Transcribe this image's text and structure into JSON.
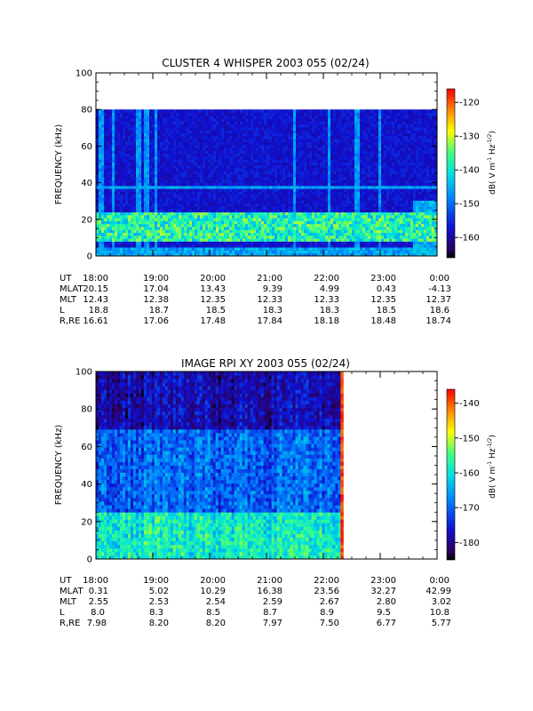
{
  "chart_data": [
    {
      "type": "heatmap",
      "title": "CLUSTER 4 WHISPER 2003 055 (02/24)",
      "ylabel": "FREQUENCY (kHz)",
      "ylim": [
        0,
        100
      ],
      "yticks": [
        "0",
        "20",
        "40",
        "60",
        "80",
        "100"
      ],
      "colorbar": {
        "label": "dB( V m",
        "label_sup1": "-1",
        "label_mid": " Hz",
        "label_sup2": "-1/2",
        "label_end": ")",
        "range": [
          -166,
          -116
        ],
        "ticks": [
          "-120",
          "-130",
          "-140",
          "-150",
          "-160"
        ],
        "tick_values": [
          -120,
          -130,
          -140,
          -150,
          -160
        ]
      },
      "time_range_h": [
        18,
        24
      ],
      "data_end_h": 24,
      "freq_cutoff_khz": 80,
      "features": {
        "background_db": -157,
        "band_khz": [
          8,
          24
        ],
        "band_db": -138,
        "line_khz": 38,
        "spikes_h": [
          18.1,
          18.3,
          18.75,
          18.9,
          19.05,
          21.5,
          22.1,
          22.6,
          23.0
        ]
      },
      "ephemeris": {
        "row_labels": [
          "UT",
          "MLAT",
          "MLT",
          "L",
          "R,RE"
        ],
        "columns": [
          [
            "18:00",
            "20.15",
            "12.43",
            "18.8",
            "16.61"
          ],
          [
            "19:00",
            "17.04",
            "12.38",
            "18.7",
            "17.06"
          ],
          [
            "20:00",
            "13.43",
            "12.35",
            "18.5",
            "17.48"
          ],
          [
            "21:00",
            "9.39",
            "12.33",
            "18.3",
            "17.84"
          ],
          [
            "22:00",
            "4.99",
            "12.33",
            "18.3",
            "18.18"
          ],
          [
            "23:00",
            "0.43",
            "12.35",
            "18.5",
            "18.48"
          ],
          [
            "0:00",
            "-4.13",
            "12.37",
            "18.6",
            "18.74"
          ]
        ]
      }
    },
    {
      "type": "heatmap",
      "title": "IMAGE RPI XY 2003 055 (02/24)",
      "ylabel": "FREQUENCY (kHz)",
      "ylim": [
        0,
        100
      ],
      "yticks": [
        "0",
        "20",
        "40",
        "60",
        "80",
        "100"
      ],
      "colorbar": {
        "label": "dB( V m",
        "label_sup1": "-1",
        "label_mid": " Hz",
        "label_sup2": "-1/2",
        "label_end": ")",
        "range": [
          -185,
          -136
        ],
        "ticks": [
          "-140",
          "-150",
          "-160",
          "-170",
          "-180"
        ],
        "tick_values": [
          -140,
          -150,
          -160,
          -170,
          -180
        ]
      },
      "time_range_h": [
        18,
        24
      ],
      "data_end_h": 22.35,
      "freq_cutoff_khz": 102,
      "features": {
        "background_db": -170,
        "low_freq_db": -160,
        "high_freq_db": -178,
        "bright_start_h": 22.3
      },
      "ephemeris": {
        "row_labels": [
          "UT",
          "MLAT",
          "MLT",
          "L",
          "R,RE"
        ],
        "columns": [
          [
            "18:00",
            "0.31",
            "2.55",
            "8.0",
            "7.98"
          ],
          [
            "19:00",
            "5.02",
            "2.53",
            "8.3",
            "8.20"
          ],
          [
            "20:00",
            "10.29",
            "2.54",
            "8.5",
            "8.20"
          ],
          [
            "21:00",
            "16.38",
            "2.59",
            "8.7",
            "7.97"
          ],
          [
            "22:00",
            "23.56",
            "2.67",
            "8.9",
            "7.50"
          ],
          [
            "23:00",
            "32.27",
            "2.80",
            "9.5",
            "6.77"
          ],
          [
            "0:00",
            "42.99",
            "3.02",
            "10.8",
            "5.77"
          ]
        ]
      }
    }
  ]
}
